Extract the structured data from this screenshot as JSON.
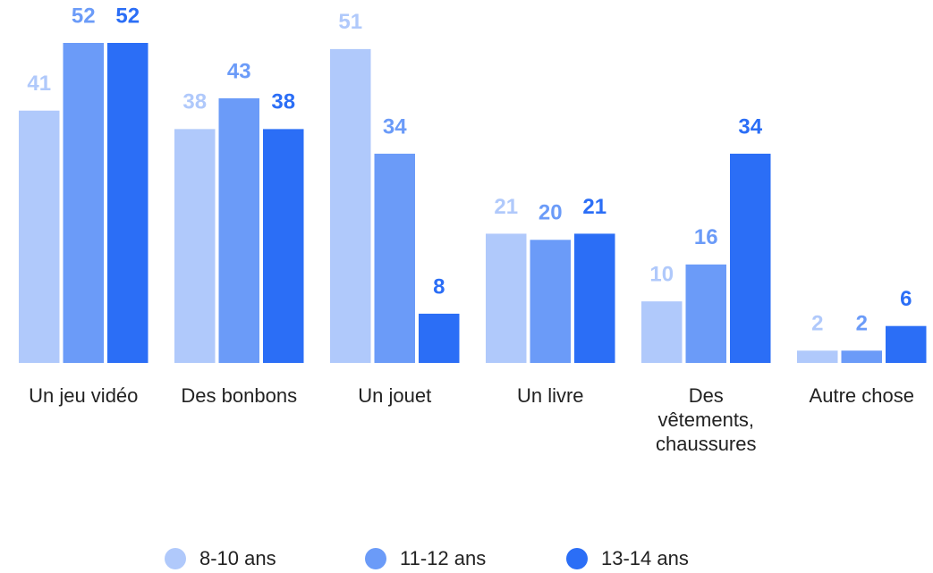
{
  "chart_data": {
    "type": "bar",
    "categories": [
      "Un jeu vidéo",
      "Des bonbons",
      "Un jouet",
      "Un livre",
      "Des vêtements, chaussures",
      "Autre chose"
    ],
    "series": [
      {
        "name": "8-10 ans",
        "color": "#b0c9fb",
        "values": [
          41,
          38,
          51,
          21,
          10,
          2
        ]
      },
      {
        "name": "11-12 ans",
        "color": "#6b9bf8",
        "values": [
          52,
          43,
          34,
          20,
          16,
          2
        ]
      },
      {
        "name": "13-14 ans",
        "color": "#2b6ef6",
        "values": [
          52,
          38,
          8,
          21,
          34,
          6
        ]
      }
    ],
    "legend": "bottom"
  }
}
